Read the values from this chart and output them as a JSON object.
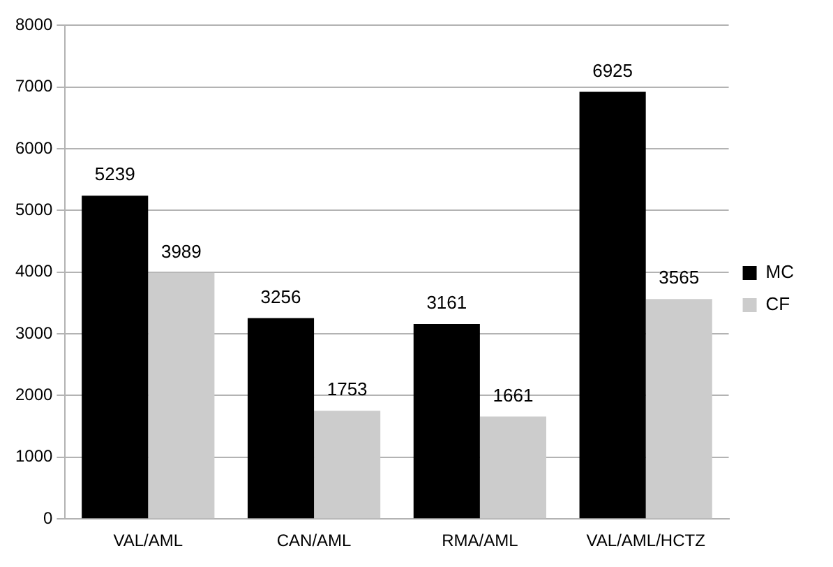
{
  "chart_data": {
    "type": "bar",
    "categories": [
      "VAL/AML",
      "CAN/AML",
      "RMA/AML",
      "VAL/AML/HCTZ"
    ],
    "series": [
      {
        "name": "MC",
        "color": "#000000",
        "values": [
          5239,
          3256,
          3161,
          6925
        ]
      },
      {
        "name": "CF",
        "color": "#cccccc",
        "values": [
          3989,
          1753,
          1661,
          3565
        ]
      }
    ],
    "ylim": [
      0,
      8000
    ],
    "yticks": [
      0,
      1000,
      2000,
      3000,
      4000,
      5000,
      6000,
      7000,
      8000
    ],
    "grid": "y",
    "legend": "right",
    "data_labels": true
  }
}
